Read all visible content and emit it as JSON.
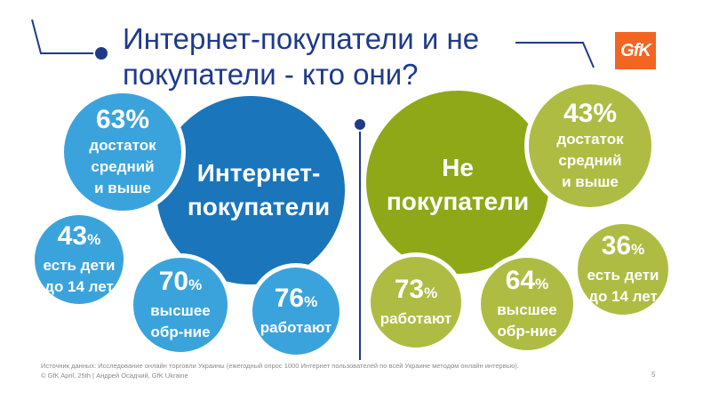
{
  "title": {
    "line1": "Интернет-покупатели и не",
    "line2": "покупатели - кто они?"
  },
  "logo": {
    "text": "GfK"
  },
  "buyers": {
    "main": {
      "line1": "Интернет-",
      "line2": "покупатели"
    },
    "income": {
      "value": "63%",
      "line1": "достаток",
      "line2": "средний",
      "line3": "и выше"
    },
    "children": {
      "value": "43",
      "unit": "%",
      "line1": "есть дети",
      "line2": "до 14 лет"
    },
    "education": {
      "value": "70",
      "unit": "%",
      "line1": "высшее",
      "line2": "обр-ние"
    },
    "working": {
      "value": "76",
      "unit": "%",
      "line1": "работают"
    }
  },
  "non_buyers": {
    "main": {
      "line1": "Не",
      "line2": "покупатели"
    },
    "income": {
      "value": "43%",
      "line1": "достаток",
      "line2": "средний",
      "line3": "и выше"
    },
    "children": {
      "value": "36",
      "unit": "%",
      "line1": "есть дети",
      "line2": "до 14 лет"
    },
    "education": {
      "value": "64",
      "unit": "%",
      "line1": "высшее",
      "line2": "обр-ние"
    },
    "working": {
      "value": "73",
      "unit": "%",
      "line1": "работают"
    }
  },
  "footer": {
    "source": "Источник данных: Исследование онлайн торговли Украины (ежегодный опрос 1000 Интернет пользователей по всей Украине методом онлайн интервью).",
    "copyright": "© GfK April, 25th | Андрей Осадчий, GfK Ukraine",
    "page": "5"
  },
  "colors": {
    "title": "#1d3a8c",
    "buyers_main": "#1a75bb",
    "buyers_stat": "#3ba3dc",
    "non_buyers_main": "#8fa818",
    "non_buyers_stat": "#aebc44",
    "logo": "#f26522"
  }
}
